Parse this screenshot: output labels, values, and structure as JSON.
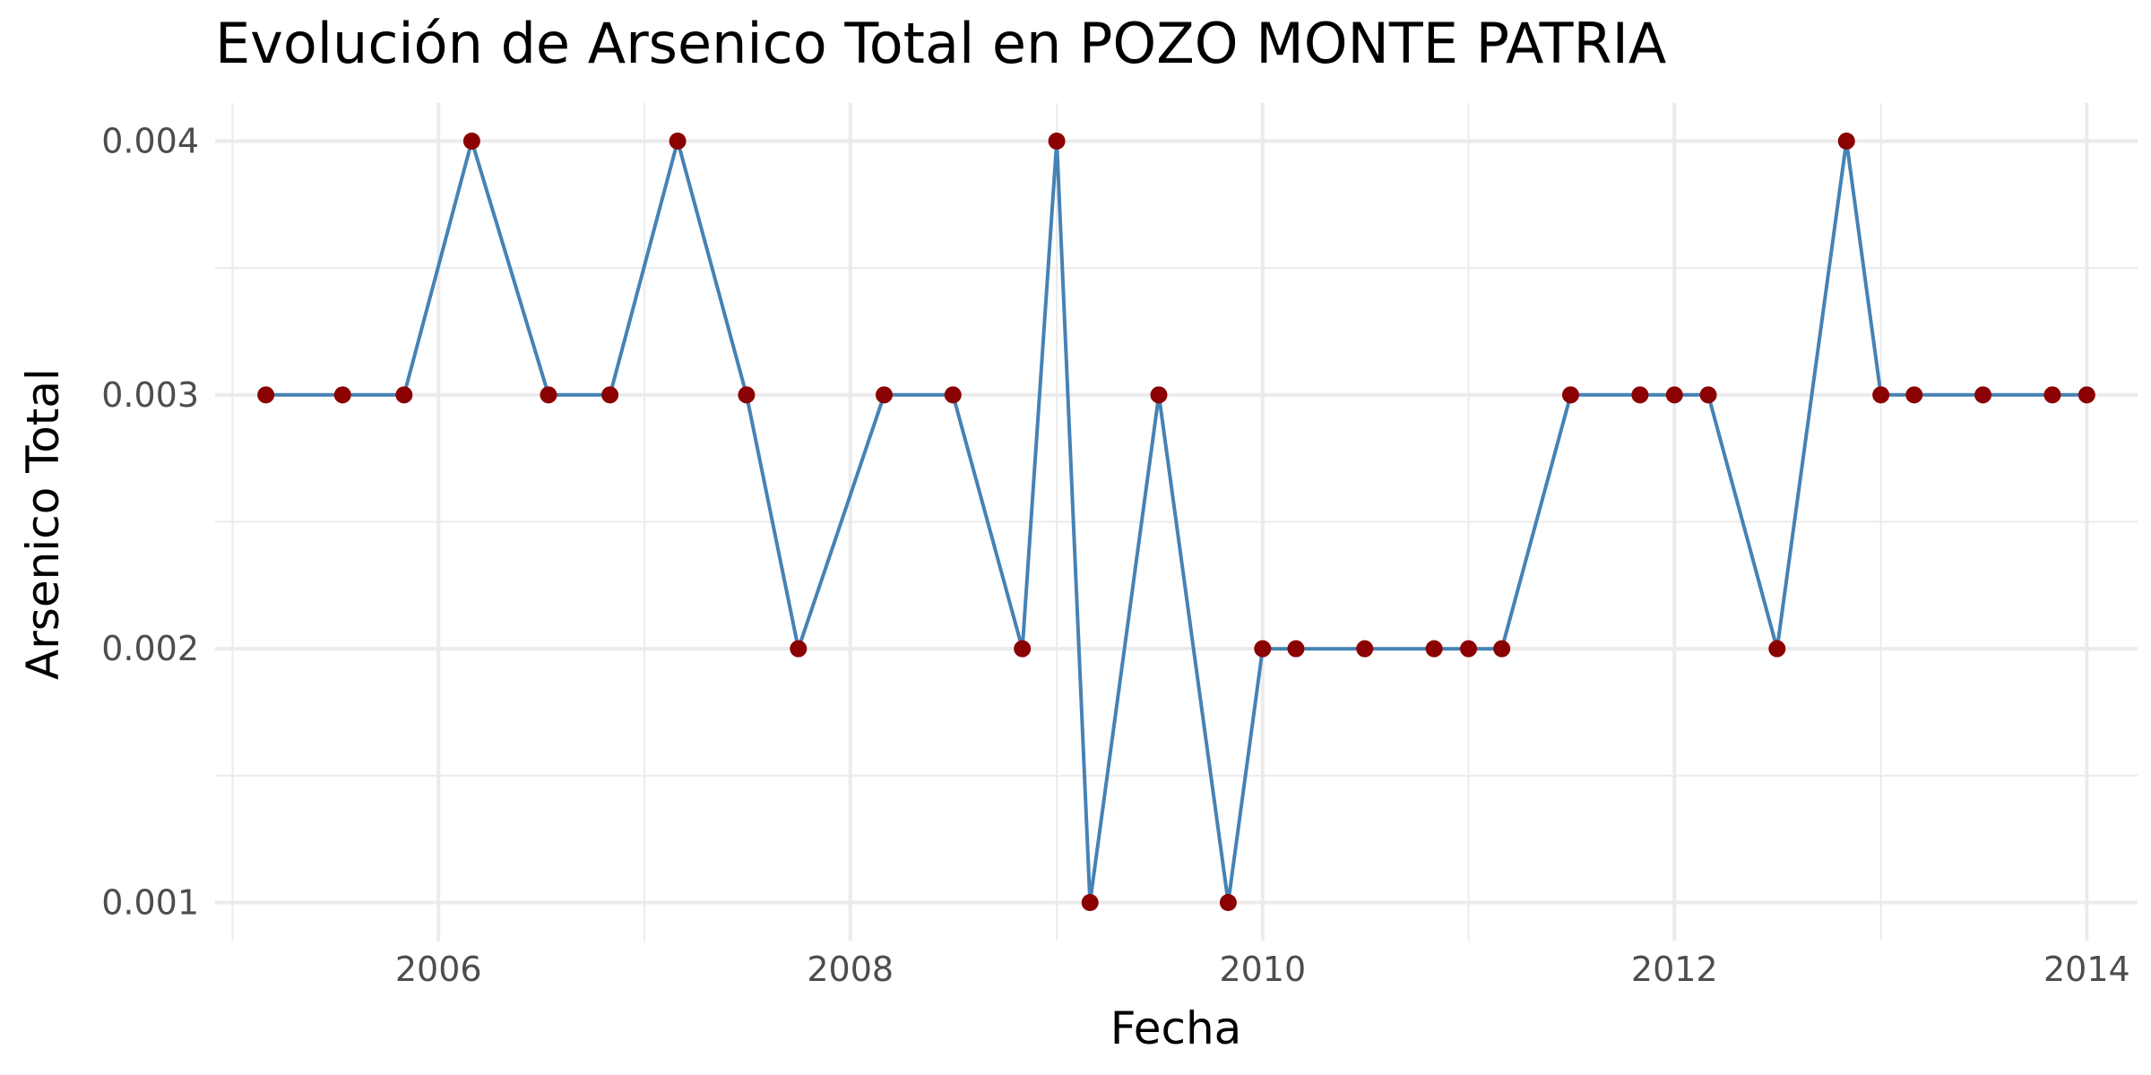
{
  "chart_data": {
    "type": "line",
    "title": "Evolución de Arsenico Total en POZO MONTE PATRIA",
    "xlabel": "Fecha",
    "ylabel": "Arsenico Total",
    "x_axis_type": "date",
    "xlim": [
      "2004-12-01",
      "2014-04-01"
    ],
    "ylim": [
      0.00085,
      0.00415
    ],
    "x_ticks": [
      "2006",
      "2008",
      "2010",
      "2012",
      "2014"
    ],
    "y_ticks": [
      "0.001",
      "0.002",
      "0.003",
      "0.004"
    ],
    "grid": true,
    "legend": "none",
    "line_color": "#4682b4",
    "point_color": "#8b0000",
    "series": [
      {
        "x": [
          "2005-03-01",
          "2005-07-15",
          "2005-11-01",
          "2006-03-01",
          "2006-07-15",
          "2006-11-01",
          "2007-03-01",
          "2007-07-01",
          "2007-10-01",
          "2008-03-01",
          "2008-07-01",
          "2008-11-01",
          "2009-01-01",
          "2009-03-01",
          "2009-07-01",
          "2009-11-01",
          "2010-01-01",
          "2010-03-01",
          "2010-07-01",
          "2010-11-01",
          "2011-01-01",
          "2011-03-01",
          "2011-07-01",
          "2011-11-01",
          "2012-01-01",
          "2012-03-01",
          "2012-07-01",
          "2012-11-01",
          "2013-01-01",
          "2013-03-01",
          "2013-07-01",
          "2013-11-01",
          "2014-01-01"
        ],
        "y": [
          0.003,
          0.003,
          0.003,
          0.004,
          0.003,
          0.003,
          0.004,
          0.003,
          0.002,
          0.003,
          0.003,
          0.002,
          0.004,
          0.001,
          0.003,
          0.001,
          0.002,
          0.002,
          0.002,
          0.002,
          0.002,
          0.002,
          0.003,
          0.003,
          0.003,
          0.003,
          0.002,
          0.004,
          0.003,
          0.003,
          0.003,
          0.003,
          0.003
        ]
      }
    ]
  }
}
